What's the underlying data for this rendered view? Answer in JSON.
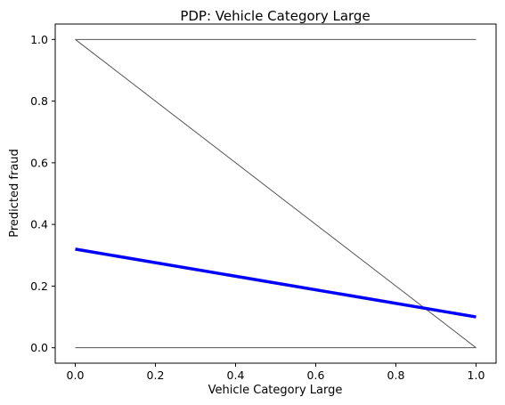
{
  "chart_data": {
    "type": "line",
    "title": "PDP: Vehicle Category Large",
    "xlabel": "Vehicle Category Large",
    "ylabel": "Predicted fraud",
    "xlim": [
      -0.05,
      1.05
    ],
    "ylim": [
      -0.05,
      1.05
    ],
    "x_ticks": [
      0.0,
      0.2,
      0.4,
      0.6,
      0.8,
      1.0
    ],
    "y_ticks": [
      0.0,
      0.2,
      0.4,
      0.6,
      0.8,
      1.0
    ],
    "x_tick_labels": [
      "0.0",
      "0.2",
      "0.4",
      "0.6",
      "0.8",
      "1.0"
    ],
    "y_tick_labels": [
      "0.0",
      "0.2",
      "0.4",
      "0.6",
      "0.8",
      "1.0"
    ],
    "grid": false,
    "ice_color": "#555555",
    "average_color": "#0000ff",
    "series": [
      {
        "role": "ice",
        "x": [
          0,
          1
        ],
        "y": [
          1.0,
          1.0
        ]
      },
      {
        "role": "ice",
        "x": [
          0,
          1
        ],
        "y": [
          1.0,
          0.0
        ]
      },
      {
        "role": "ice",
        "x": [
          0,
          1
        ],
        "y": [
          0.0,
          0.0
        ]
      },
      {
        "role": "average",
        "x": [
          0,
          1
        ],
        "y": [
          0.32,
          0.1
        ]
      }
    ]
  }
}
